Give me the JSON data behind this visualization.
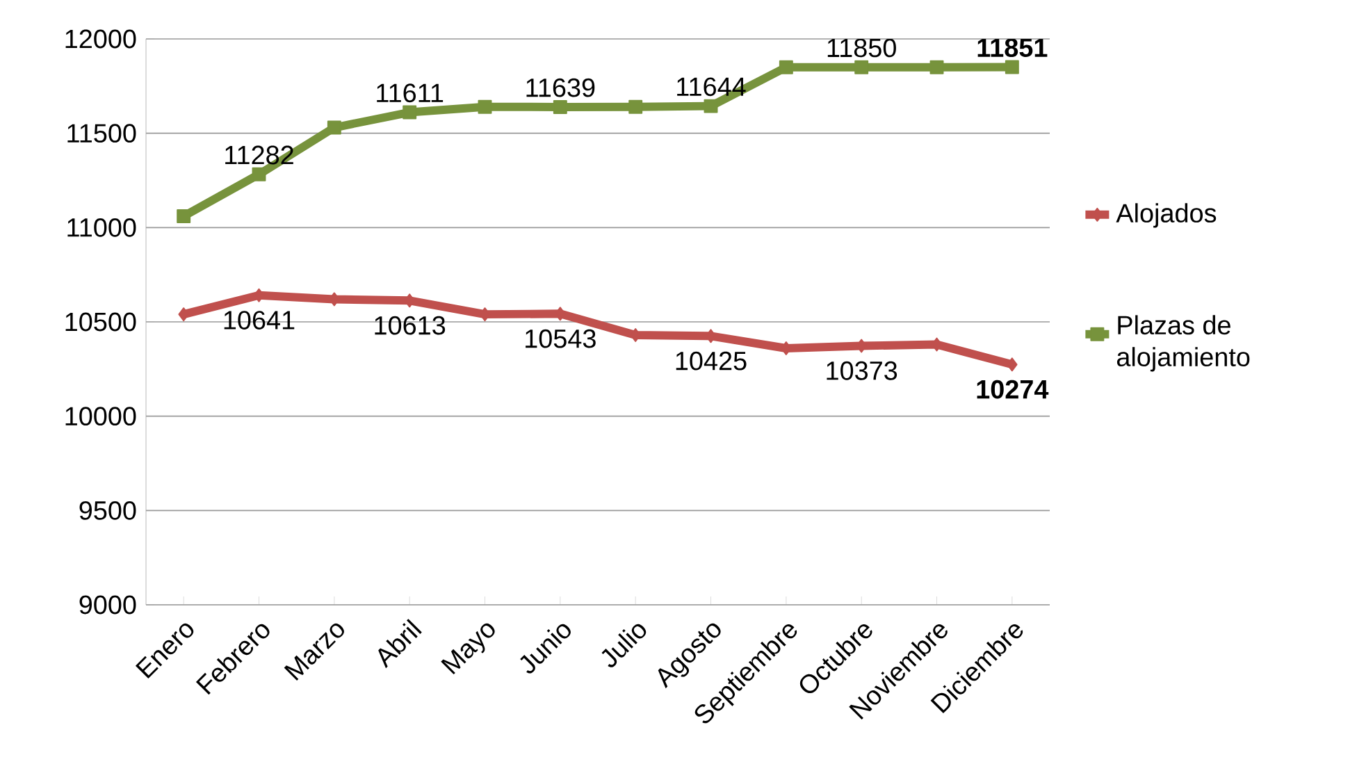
{
  "chart_data": {
    "type": "line",
    "categories": [
      "Enero",
      "Febrero",
      "Marzo",
      "Abril",
      "Mayo",
      "Junio",
      "Julio",
      "Agosto",
      "Septiembre",
      "Octubre",
      "Noviembre",
      "Diciembre"
    ],
    "series": [
      {
        "name": "Alojados",
        "color": "#c0504d",
        "marker": "diamond",
        "values": [
          10540,
          10641,
          10620,
          10613,
          10540,
          10543,
          10430,
          10425,
          10360,
          10373,
          10380,
          10274
        ],
        "value_labels": [
          null,
          "10641",
          null,
          "10613",
          null,
          "10543",
          null,
          "10425",
          null,
          "10373",
          null,
          "**10274**"
        ]
      },
      {
        "name": "Plazas de alojamiento",
        "color": "#77933c",
        "marker": "square",
        "values": [
          11060,
          11282,
          11530,
          11611,
          11640,
          11639,
          11640,
          11644,
          11850,
          11850,
          11850,
          11851
        ],
        "value_labels": [
          null,
          "11282",
          null,
          "11611",
          null,
          "11639",
          null,
          "11644",
          null,
          "11850",
          null,
          "**11851**"
        ]
      }
    ],
    "ylim": [
      9000,
      12000
    ],
    "yticks": [
      9000,
      9500,
      10000,
      10500,
      11000,
      11500,
      12000
    ],
    "grid": "y",
    "legend": "right"
  }
}
